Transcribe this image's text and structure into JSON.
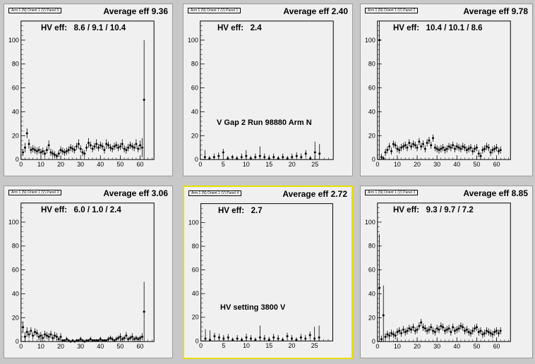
{
  "chart_data": [
    {
      "type": "scatter",
      "title": "Arm 1 (N) Orient 1 (V) Panel 0",
      "average_label": "Average eff 9.36",
      "hv_label": "HV eff:",
      "hv_values": "8.6 / 9.1 / 10.4",
      "note": "",
      "xlim": [
        0,
        67
      ],
      "ylim": [
        0,
        116
      ],
      "xticks": [
        0,
        10,
        20,
        30,
        40,
        50,
        60
      ],
      "yticks": [
        0,
        20,
        40,
        60,
        80,
        100
      ],
      "x": [
        1,
        2,
        3,
        4,
        5,
        6,
        7,
        8,
        9,
        10,
        11,
        12,
        13,
        14,
        15,
        16,
        17,
        18,
        19,
        20,
        21,
        22,
        23,
        24,
        25,
        26,
        27,
        28,
        29,
        30,
        31,
        32,
        33,
        34,
        35,
        36,
        37,
        38,
        39,
        40,
        41,
        42,
        43,
        44,
        45,
        46,
        47,
        48,
        49,
        50,
        51,
        52,
        53,
        54,
        55,
        56,
        57,
        58,
        59,
        60,
        61,
        62
      ],
      "y": [
        6,
        10,
        22,
        13,
        8,
        9,
        8,
        7,
        8,
        6,
        7,
        5,
        8,
        12,
        6,
        5,
        4,
        3,
        5,
        8,
        7,
        6,
        7,
        8,
        10,
        9,
        8,
        11,
        13,
        9,
        6,
        5,
        10,
        14,
        12,
        9,
        11,
        13,
        10,
        12,
        11,
        8,
        13,
        12,
        10,
        9,
        11,
        12,
        10,
        11,
        13,
        9,
        8,
        10,
        12,
        11,
        10,
        13,
        9,
        12,
        10,
        50
      ],
      "err": [
        3,
        4,
        4,
        4,
        3,
        3,
        3,
        3,
        3,
        3,
        3,
        3,
        3,
        4,
        3,
        3,
        3,
        2,
        3,
        3,
        3,
        3,
        3,
        3,
        3,
        3,
        3,
        3,
        4,
        3,
        3,
        3,
        3,
        4,
        3,
        3,
        3,
        4,
        3,
        3,
        3,
        3,
        4,
        3,
        3,
        3,
        3,
        3,
        3,
        3,
        4,
        3,
        3,
        3,
        3,
        3,
        3,
        4,
        3,
        4,
        8,
        50
      ]
    },
    {
      "type": "scatter",
      "title": "Arm 1 (N) Orient 1 (V) Panel 1",
      "average_label": "Average eff 2.40",
      "hv_label": "HV eff:",
      "hv_values": "2.4",
      "note": "V Gap 2 Run 98880 Arm N",
      "xlim": [
        0,
        29
      ],
      "ylim": [
        0,
        116
      ],
      "xticks": [
        0,
        5,
        10,
        15,
        20,
        25
      ],
      "yticks": [
        0,
        20,
        40,
        60,
        80,
        100
      ],
      "x": [
        1,
        2,
        3,
        4,
        5,
        6,
        7,
        8,
        9,
        10,
        11,
        12,
        13,
        14,
        15,
        16,
        17,
        18,
        19,
        20,
        21,
        22,
        23,
        24,
        25,
        26
      ],
      "y": [
        2,
        1,
        2,
        3,
        6,
        1,
        2,
        1,
        2,
        3,
        1,
        2,
        3,
        2,
        1,
        2,
        1,
        2,
        1,
        2,
        3,
        2,
        5,
        1,
        6,
        5
      ],
      "err": [
        6,
        2,
        3,
        3,
        3,
        2,
        2,
        2,
        3,
        5,
        2,
        3,
        8,
        3,
        2,
        3,
        2,
        3,
        2,
        3,
        3,
        3,
        3,
        2,
        9,
        8
      ]
    },
    {
      "type": "scatter",
      "title": "Arm 1 (N) Orient 1 (V) Panel 2",
      "average_label": "Average eff 9.78",
      "hv_label": "HV eff:",
      "hv_values": "10.4 / 10.1 / 8.6",
      "note": "",
      "xlim": [
        0,
        67
      ],
      "ylim": [
        0,
        116
      ],
      "xticks": [
        0,
        10,
        20,
        30,
        40,
        50,
        60
      ],
      "yticks": [
        0,
        20,
        40,
        60,
        80,
        100
      ],
      "x": [
        1,
        2,
        3,
        4,
        5,
        6,
        7,
        8,
        9,
        10,
        11,
        12,
        13,
        14,
        15,
        16,
        17,
        18,
        19,
        20,
        21,
        22,
        23,
        24,
        25,
        26,
        27,
        28,
        29,
        30,
        31,
        32,
        33,
        34,
        35,
        36,
        37,
        38,
        39,
        40,
        41,
        42,
        43,
        44,
        45,
        46,
        47,
        48,
        49,
        50,
        51,
        52,
        53,
        54,
        55,
        56,
        57,
        58,
        59,
        60,
        61,
        62
      ],
      "y": [
        100,
        2,
        1,
        6,
        8,
        11,
        7,
        13,
        12,
        9,
        8,
        10,
        11,
        12,
        10,
        14,
        11,
        13,
        12,
        10,
        15,
        11,
        13,
        9,
        14,
        16,
        12,
        18,
        10,
        9,
        8,
        9,
        10,
        8,
        9,
        11,
        10,
        12,
        9,
        11,
        10,
        9,
        11,
        10,
        8,
        9,
        10,
        7,
        9,
        10,
        5,
        3,
        8,
        9,
        11,
        10,
        6,
        8,
        9,
        10,
        7,
        8
      ],
      "err": [
        100,
        3,
        2,
        3,
        3,
        3,
        3,
        3,
        3,
        3,
        3,
        3,
        3,
        3,
        3,
        3,
        3,
        3,
        3,
        3,
        3,
        3,
        3,
        3,
        3,
        3,
        3,
        3,
        3,
        3,
        3,
        3,
        3,
        3,
        3,
        3,
        3,
        3,
        3,
        3,
        3,
        3,
        3,
        3,
        3,
        3,
        3,
        3,
        3,
        3,
        3,
        3,
        3,
        3,
        3,
        3,
        3,
        3,
        3,
        3,
        3,
        3
      ]
    },
    {
      "type": "scatter",
      "title": "Arm 1 (N) Orient 1 (V) Panel 3",
      "average_label": "Average eff 3.06",
      "hv_label": "HV eff:",
      "hv_values": "6.0 / 1.0 / 2.4",
      "note": "",
      "xlim": [
        0,
        67
      ],
      "ylim": [
        0,
        116
      ],
      "xticks": [
        0,
        10,
        20,
        30,
        40,
        50,
        60
      ],
      "yticks": [
        0,
        20,
        40,
        60,
        80,
        100
      ],
      "x": [
        1,
        2,
        3,
        4,
        5,
        6,
        7,
        8,
        9,
        10,
        11,
        12,
        13,
        14,
        15,
        16,
        17,
        18,
        19,
        20,
        21,
        22,
        23,
        24,
        25,
        26,
        27,
        28,
        29,
        30,
        31,
        32,
        33,
        34,
        35,
        36,
        37,
        38,
        39,
        40,
        41,
        42,
        43,
        44,
        45,
        46,
        47,
        48,
        49,
        50,
        51,
        52,
        53,
        54,
        55,
        56,
        57,
        58,
        59,
        60,
        61,
        62
      ],
      "y": [
        12,
        4,
        8,
        6,
        9,
        5,
        8,
        7,
        4,
        5,
        3,
        6,
        5,
        4,
        6,
        3,
        5,
        4,
        2,
        4,
        1,
        1,
        2,
        1,
        0,
        1,
        0,
        1,
        1,
        2,
        1,
        0,
        1,
        1,
        2,
        1,
        1,
        1,
        1,
        2,
        1,
        1,
        1,
        2,
        3,
        2,
        1,
        2,
        3,
        4,
        2,
        3,
        5,
        2,
        3,
        4,
        2,
        3,
        2,
        3,
        4,
        25
      ],
      "err": [
        5,
        4,
        4,
        3,
        3,
        3,
        3,
        3,
        3,
        3,
        3,
        3,
        3,
        3,
        3,
        3,
        3,
        3,
        2,
        3,
        1,
        1,
        2,
        1,
        1,
        1,
        1,
        1,
        1,
        2,
        1,
        1,
        1,
        1,
        2,
        1,
        1,
        1,
        1,
        2,
        1,
        1,
        1,
        2,
        2,
        2,
        1,
        2,
        2,
        3,
        2,
        2,
        3,
        2,
        2,
        3,
        2,
        2,
        2,
        2,
        3,
        25
      ]
    },
    {
      "type": "scatter",
      "title": "Arm 1 (N) Orient 1 (V) Panel 4",
      "average_label": "Average eff 2.72",
      "hv_label": "HV eff:",
      "hv_values": "2.7",
      "note": "HV setting 3800 V",
      "xlim": [
        0,
        29
      ],
      "ylim": [
        0,
        116
      ],
      "xticks": [
        0,
        5,
        10,
        15,
        20,
        25
      ],
      "yticks": [
        0,
        20,
        40,
        60,
        80,
        100
      ],
      "x": [
        1,
        2,
        3,
        4,
        5,
        6,
        7,
        8,
        9,
        10,
        11,
        12,
        13,
        14,
        15,
        16,
        17,
        18,
        19,
        20,
        21,
        22,
        23,
        24,
        25,
        26
      ],
      "y": [
        2,
        1,
        4,
        3,
        2,
        3,
        1,
        2,
        1,
        3,
        2,
        1,
        3,
        2,
        1,
        3,
        2,
        1,
        4,
        2,
        1,
        3,
        2,
        5,
        2,
        3
      ],
      "err": [
        8,
        8,
        3,
        3,
        3,
        3,
        2,
        3,
        2,
        3,
        3,
        2,
        10,
        3,
        2,
        3,
        3,
        2,
        3,
        3,
        2,
        3,
        3,
        3,
        10,
        10
      ]
    },
    {
      "type": "scatter",
      "title": "Arm 1 (N) Orient 1 (V) Panel 3",
      "average_label": "Average eff 8.85",
      "hv_label": "HV eff:",
      "hv_values": "9.3 / 9.7 / 7.2",
      "note": "",
      "xlim": [
        0,
        67
      ],
      "ylim": [
        0,
        116
      ],
      "xticks": [
        0,
        10,
        20,
        30,
        40,
        50,
        60
      ],
      "yticks": [
        0,
        20,
        40,
        60,
        80,
        100
      ],
      "x": [
        1,
        2,
        3,
        4,
        5,
        6,
        7,
        8,
        9,
        10,
        11,
        12,
        13,
        14,
        15,
        16,
        17,
        18,
        19,
        20,
        21,
        22,
        23,
        24,
        25,
        26,
        27,
        28,
        29,
        30,
        31,
        32,
        33,
        34,
        35,
        36,
        37,
        38,
        39,
        40,
        41,
        42,
        43,
        44,
        45,
        46,
        47,
        48,
        49,
        50,
        51,
        52,
        53,
        54,
        55,
        56,
        57,
        58,
        59,
        60,
        61,
        62
      ],
      "y": [
        45,
        2,
        22,
        4,
        6,
        5,
        7,
        6,
        5,
        8,
        9,
        7,
        10,
        8,
        9,
        11,
        10,
        12,
        9,
        10,
        13,
        16,
        12,
        11,
        9,
        10,
        12,
        9,
        8,
        11,
        10,
        13,
        12,
        9,
        10,
        11,
        8,
        12,
        9,
        10,
        11,
        13,
        12,
        9,
        10,
        8,
        7,
        9,
        11,
        12,
        8,
        9,
        6,
        7,
        9,
        8,
        7,
        6,
        8,
        9,
        7,
        9
      ],
      "err": [
        45,
        3,
        25,
        3,
        3,
        3,
        3,
        3,
        3,
        3,
        3,
        3,
        3,
        3,
        3,
        3,
        3,
        3,
        3,
        3,
        3,
        3,
        3,
        3,
        3,
        3,
        3,
        3,
        3,
        3,
        3,
        3,
        3,
        3,
        3,
        3,
        3,
        3,
        3,
        3,
        3,
        3,
        3,
        3,
        3,
        3,
        3,
        3,
        3,
        3,
        3,
        3,
        3,
        3,
        3,
        3,
        3,
        3,
        3,
        3,
        3,
        3
      ]
    }
  ]
}
